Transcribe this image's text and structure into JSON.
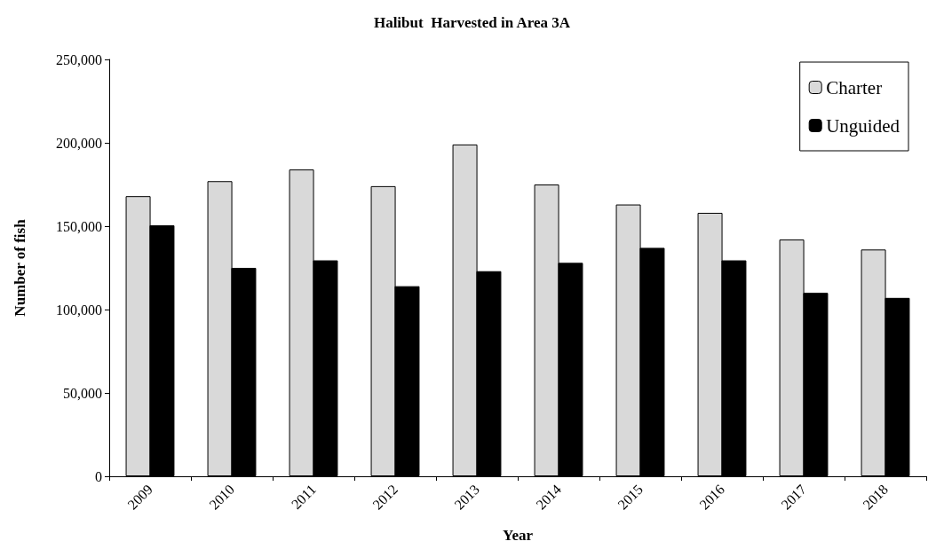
{
  "chart_data": {
    "type": "bar",
    "title": "Halibut  Harvested in Area 3A",
    "xlabel": "Year",
    "ylabel": "Number of fish",
    "categories": [
      "2009",
      "2010",
      "2011",
      "2012",
      "2013",
      "2014",
      "2015",
      "2016",
      "2017",
      "2018"
    ],
    "series": [
      {
        "name": "Charter",
        "color": "#d9d9d9",
        "values": [
          168000,
          177000,
          184000,
          174000,
          199000,
          175000,
          163000,
          158000,
          142000,
          136000
        ]
      },
      {
        "name": "Unguided",
        "color": "#000000",
        "values": [
          150500,
          125000,
          129500,
          114000,
          123000,
          128000,
          137000,
          129500,
          110000,
          107000
        ]
      }
    ],
    "ylim": [
      0,
      250000
    ],
    "yticks": [
      0,
      {
        "value": 50000,
        "label": "50,000"
      },
      {
        "value": 100000,
        "label": "100,000"
      },
      {
        "value": 150000,
        "label": "150,000"
      },
      {
        "value": 200000,
        "label": "200,000"
      },
      {
        "value": 250000,
        "label": "250,000"
      }
    ],
    "grid": false,
    "legend": "top right"
  }
}
